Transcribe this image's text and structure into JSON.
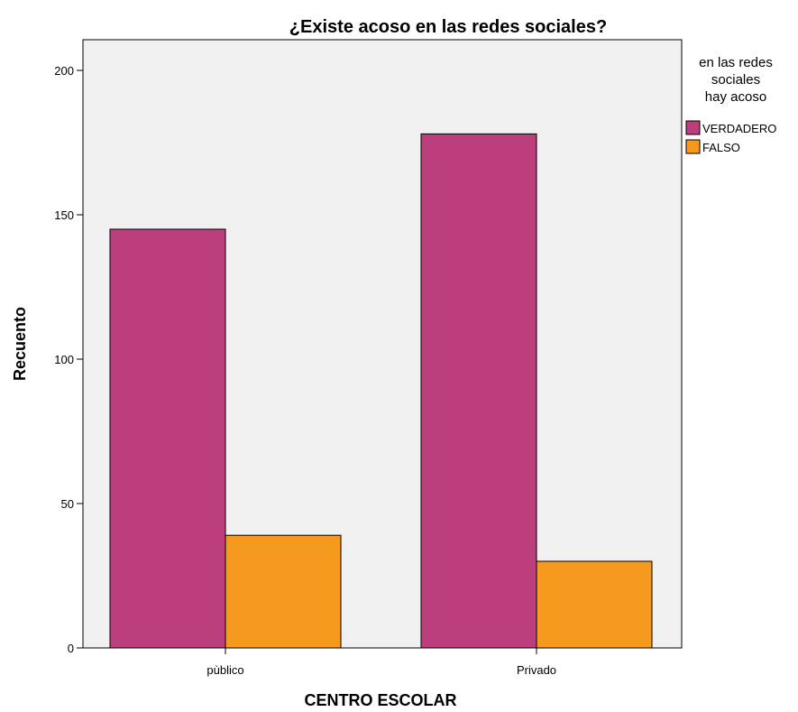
{
  "chart_data": {
    "type": "bar",
    "title": "¿Existe acoso en las redes sociales?",
    "xlabel": "CENTRO ESCOLAR",
    "ylabel": "Recuento",
    "categories": [
      "pùblico",
      "Privado"
    ],
    "series": [
      {
        "name": "VERDADERO",
        "color": "#BC3F7D",
        "values": [
          145,
          178
        ]
      },
      {
        "name": "FALSO",
        "color": "#F59A1F",
        "values": [
          39,
          30
        ]
      }
    ],
    "ylim": [
      0,
      210
    ],
    "yticks": [
      0,
      50,
      100,
      150,
      200
    ],
    "grid": false,
    "plot_background": "#F0F0F0",
    "legend": {
      "title_lines": [
        "en las redes",
        "sociales",
        "hay acoso"
      ],
      "position": "top-right, outside plot"
    }
  }
}
